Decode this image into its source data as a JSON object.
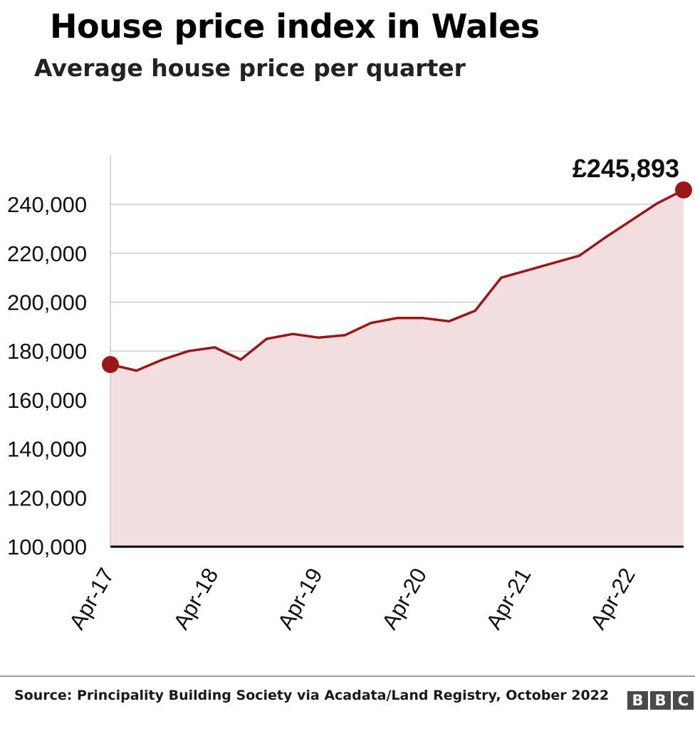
{
  "title": "House price index in Wales",
  "subtitle": "Average house price per quarter",
  "source": "Source: Principality Building Society via Acadata/Land Registry, October 2022",
  "logo": [
    "B",
    "B",
    "C"
  ],
  "colors": {
    "line": "#9b1717",
    "area": "#f2dede",
    "grid": "#cccccc",
    "axis": "#000000"
  },
  "chart_data": {
    "type": "area",
    "x": [
      "Apr-17",
      "Jul-17",
      "Oct-17",
      "Jan-18",
      "Apr-18",
      "Jul-18",
      "Oct-18",
      "Jan-19",
      "Apr-19",
      "Jul-19",
      "Oct-19",
      "Jan-20",
      "Apr-20",
      "Jul-20",
      "Oct-20",
      "Jan-21",
      "Apr-21",
      "Jul-21",
      "Oct-21",
      "Jan-22",
      "Apr-22",
      "Jul-22",
      "Sep-22"
    ],
    "values": [
      174500,
      172000,
      176500,
      180000,
      181500,
      176500,
      185000,
      187000,
      185500,
      186500,
      191500,
      193500,
      193500,
      192200,
      196500,
      210000,
      213000,
      216000,
      219000,
      226500,
      233500,
      240500,
      245893
    ],
    "xticks": [
      "Apr-17",
      "Apr-18",
      "Apr-19",
      "Apr-20",
      "Apr-21",
      "Apr-22"
    ],
    "yticks": [
      "100,000",
      "120,000",
      "140,000",
      "160,000",
      "180,000",
      "200,000",
      "220,000",
      "240,000"
    ],
    "ylim": [
      100000,
      260000
    ],
    "grid": true,
    "annotation": {
      "text": "£245,893",
      "value": 245893
    }
  }
}
